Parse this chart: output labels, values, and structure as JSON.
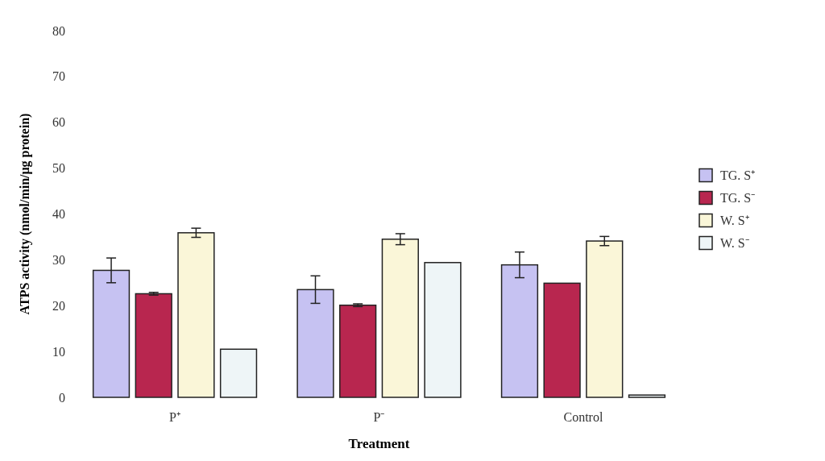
{
  "chart_data": {
    "type": "bar",
    "xlabel": "Treatment",
    "ylabel": "ATPS activity (nmol/min/μg protein)",
    "categories": [
      "P⁺",
      "P⁻",
      "Control"
    ],
    "ylim": [
      0,
      80
    ],
    "yticks": [
      0,
      10,
      20,
      30,
      40,
      50,
      60,
      70,
      80
    ],
    "grid": false,
    "legend": "right",
    "series": [
      {
        "name": "TG. S⁺",
        "color": "#c6c2f2",
        "values": [
          27.7,
          23.5,
          28.9
        ],
        "errors": [
          2.7,
          3,
          2.8
        ]
      },
      {
        "name": "TG. S⁻",
        "color": "#b8264f",
        "values": [
          22.6,
          20.1,
          24.9
        ],
        "errors": [
          0.3,
          0.3,
          null
        ]
      },
      {
        "name": "W. S⁺",
        "color": "#faf6d8",
        "values": [
          35.9,
          34.5,
          34.1
        ],
        "errors": [
          1,
          1.2,
          1
        ]
      },
      {
        "name": "W. S⁻",
        "color": "#eef5f7",
        "values": [
          10.5,
          29.4,
          0.5
        ]
      }
    ]
  }
}
